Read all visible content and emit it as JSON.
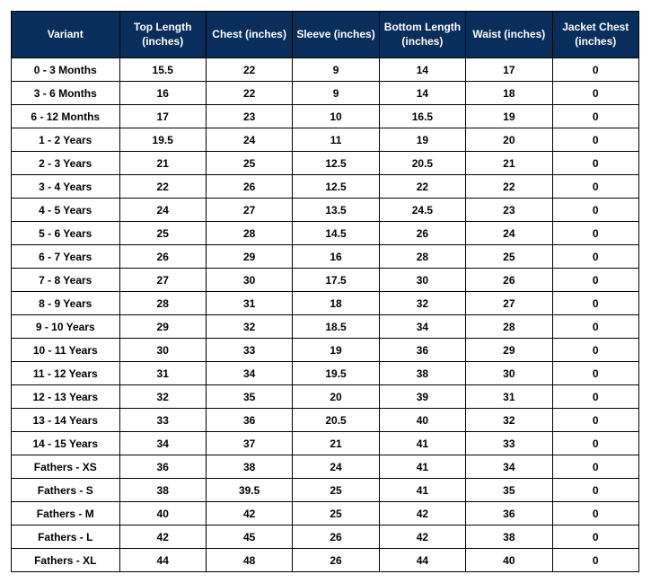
{
  "table": {
    "header_bg": "#0a2e5c",
    "header_fg": "#ffffff",
    "cell_bg": "#ffffff",
    "cell_fg": "#000000",
    "border_color": "#000000",
    "columns": [
      "Variant",
      "Top Length (inches)",
      "Chest (inches)",
      "Sleeve (inches)",
      "Bottom Length (inches)",
      "Waist (inches)",
      "Jacket Chest (inches)"
    ],
    "rows": [
      [
        "0 - 3 Months",
        "15.5",
        "22",
        "9",
        "14",
        "17",
        "0"
      ],
      [
        "3 - 6 Months",
        "16",
        "22",
        "9",
        "14",
        "18",
        "0"
      ],
      [
        "6 - 12 Months",
        "17",
        "23",
        "10",
        "16.5",
        "19",
        "0"
      ],
      [
        "1 - 2 Years",
        "19.5",
        "24",
        "11",
        "19",
        "20",
        "0"
      ],
      [
        "2 - 3 Years",
        "21",
        "25",
        "12.5",
        "20.5",
        "21",
        "0"
      ],
      [
        "3 - 4 Years",
        "22",
        "26",
        "12.5",
        "22",
        "22",
        "0"
      ],
      [
        "4 - 5 Years",
        "24",
        "27",
        "13.5",
        "24.5",
        "23",
        "0"
      ],
      [
        "5 - 6 Years",
        "25",
        "28",
        "14.5",
        "26",
        "24",
        "0"
      ],
      [
        "6 - 7 Years",
        "26",
        "29",
        "16",
        "28",
        "25",
        "0"
      ],
      [
        "7 - 8 Years",
        "27",
        "30",
        "17.5",
        "30",
        "26",
        "0"
      ],
      [
        "8 - 9 Years",
        "28",
        "31",
        "18",
        "32",
        "27",
        "0"
      ],
      [
        "9 - 10 Years",
        "29",
        "32",
        "18.5",
        "34",
        "28",
        "0"
      ],
      [
        "10 - 11 Years",
        "30",
        "33",
        "19",
        "36",
        "29",
        "0"
      ],
      [
        "11 - 12 Years",
        "31",
        "34",
        "19.5",
        "38",
        "30",
        "0"
      ],
      [
        "12 - 13 Years",
        "32",
        "35",
        "20",
        "39",
        "31",
        "0"
      ],
      [
        "13 - 14 Years",
        "33",
        "36",
        "20.5",
        "40",
        "32",
        "0"
      ],
      [
        "14 - 15 Years",
        "34",
        "37",
        "21",
        "41",
        "33",
        "0"
      ],
      [
        "Fathers - XS",
        "36",
        "38",
        "24",
        "41",
        "34",
        "0"
      ],
      [
        "Fathers - S",
        "38",
        "39.5",
        "25",
        "41",
        "35",
        "0"
      ],
      [
        "Fathers - M",
        "40",
        "42",
        "25",
        "42",
        "36",
        "0"
      ],
      [
        "Fathers - L",
        "42",
        "45",
        "26",
        "42",
        "38",
        "0"
      ],
      [
        "Fathers - XL",
        "44",
        "48",
        "26",
        "44",
        "40",
        "0"
      ]
    ]
  }
}
